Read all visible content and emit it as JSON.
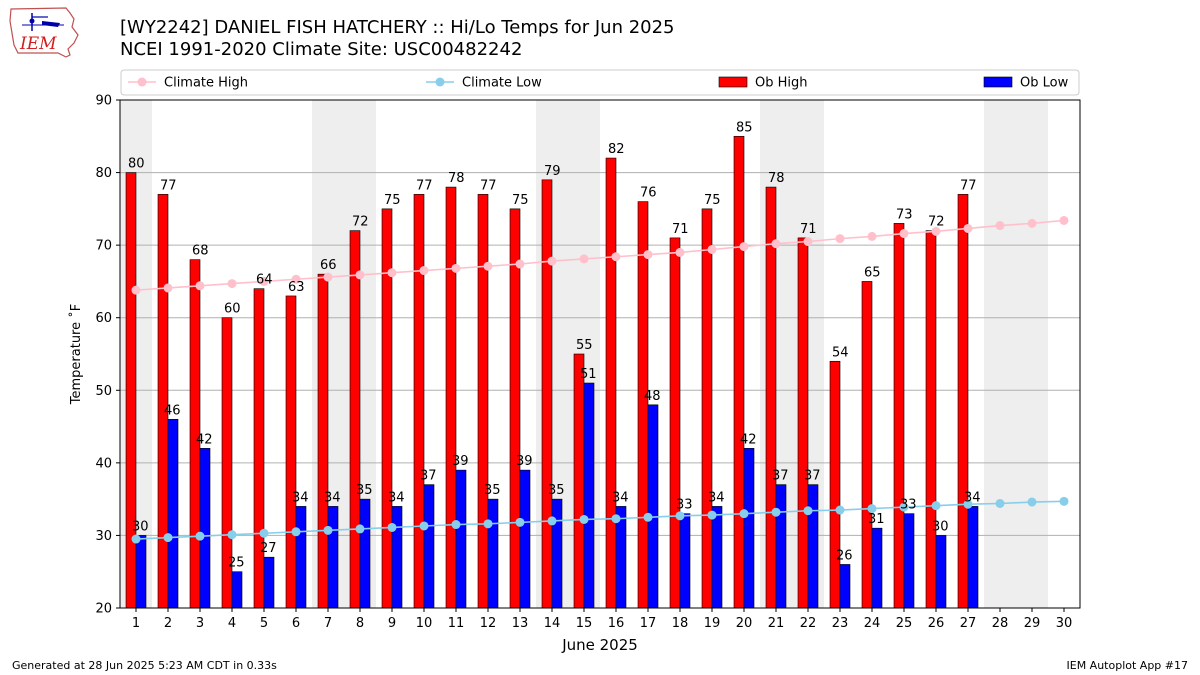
{
  "header": {
    "title_line1": "[WY2242] DANIEL FISH HATCHERY :: Hi/Lo Temps for Jun 2025",
    "title_line2": "NCEI 1991-2020 Climate Site: USC00482242",
    "logo_text": "IEM"
  },
  "footer": {
    "generated": "Generated at 28 Jun 2025 5:23 AM CDT in 0.33s",
    "app": "IEM Autoplot App #17"
  },
  "colors": {
    "climate_high": "#ffc0cb",
    "climate_low": "#87ceeb",
    "ob_high": "#ff0000",
    "ob_low": "#0000ff",
    "weekend_shade": "#eeeeee",
    "grid": "#b0b0b0"
  },
  "chart_data": {
    "type": "bar",
    "xlabel": "June 2025",
    "ylabel": "Temperature ˚F",
    "ylim": [
      20,
      90
    ],
    "yticks": [
      20,
      30,
      40,
      50,
      60,
      70,
      80,
      90
    ],
    "grid": "horizontal",
    "legend_placement": "top",
    "shaded_days": [
      1,
      7,
      8,
      14,
      15,
      21,
      22,
      28,
      29
    ],
    "days": [
      1,
      2,
      3,
      4,
      5,
      6,
      7,
      8,
      9,
      10,
      11,
      12,
      13,
      14,
      15,
      16,
      17,
      18,
      19,
      20,
      21,
      22,
      23,
      24,
      25,
      26,
      27,
      28,
      29,
      30
    ],
    "series": [
      {
        "name": "Climate High",
        "kind": "line",
        "values": [
          63.8,
          64.1,
          64.4,
          64.7,
          65.0,
          65.3,
          65.6,
          65.9,
          66.2,
          66.5,
          66.8,
          67.1,
          67.4,
          67.8,
          68.1,
          68.4,
          68.7,
          69.0,
          69.4,
          69.8,
          70.2,
          70.5,
          70.9,
          71.2,
          71.6,
          71.9,
          72.3,
          72.7,
          73.0,
          73.4
        ]
      },
      {
        "name": "Climate Low",
        "kind": "line",
        "values": [
          29.5,
          29.7,
          29.9,
          30.1,
          30.3,
          30.5,
          30.7,
          30.9,
          31.1,
          31.3,
          31.5,
          31.6,
          31.8,
          32.0,
          32.2,
          32.3,
          32.5,
          32.7,
          32.8,
          33.0,
          33.2,
          33.4,
          33.5,
          33.7,
          33.9,
          34.1,
          34.3,
          34.4,
          34.6,
          34.7
        ]
      },
      {
        "name": "Ob High",
        "kind": "bar",
        "values": [
          80,
          77,
          68,
          60,
          64,
          63,
          66,
          72,
          75,
          77,
          78,
          77,
          75,
          79,
          55,
          82,
          76,
          71,
          75,
          85,
          78,
          71,
          54,
          65,
          73,
          72,
          77,
          null,
          null,
          null
        ]
      },
      {
        "name": "Ob Low",
        "kind": "bar",
        "values": [
          30,
          46,
          42,
          25,
          27,
          34,
          34,
          35,
          34,
          37,
          39,
          35,
          39,
          35,
          51,
          34,
          48,
          33,
          34,
          42,
          37,
          37,
          26,
          31,
          33,
          30,
          34,
          null,
          null,
          null
        ]
      }
    ]
  }
}
